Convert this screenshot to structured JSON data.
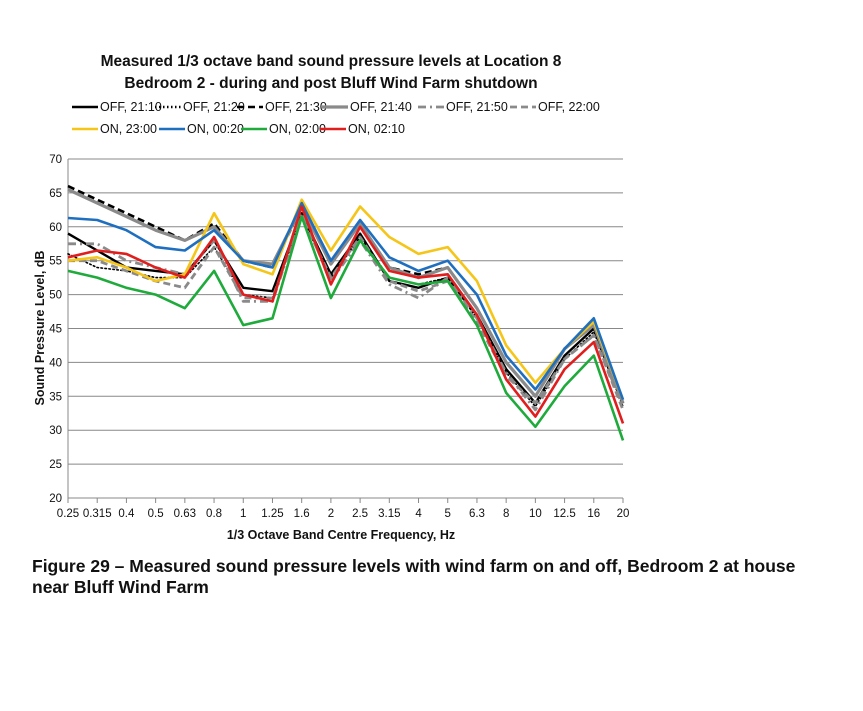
{
  "chart_data": {
    "type": "line",
    "title_line1": "Measured 1/3 octave band sound pressure levels at Location 8",
    "title_line2": "Bedroom 2 - during and post Bluff Wind Farm shutdown",
    "xlabel": "1/3 Octave Band Centre Frequency, Hz",
    "ylabel": "Sound Pressure Level, dB",
    "ylim": [
      20,
      70
    ],
    "yticks": [
      20,
      25,
      30,
      35,
      40,
      45,
      50,
      55,
      60,
      65,
      70
    ],
    "grid": "horizontal",
    "legend_position": "top",
    "categories": [
      "0.25",
      "0.315",
      "0.4",
      "0.5",
      "0.63",
      "0.8",
      "1",
      "1.25",
      "1.6",
      "2",
      "2.5",
      "3.15",
      "4",
      "5",
      "6.3",
      "8",
      "10",
      "12.5",
      "16",
      "20"
    ],
    "series": [
      {
        "name": "OFF, 21:10",
        "color": "#000000",
        "dash": "solid",
        "width": 2.4,
        "values": [
          59,
          56.5,
          54,
          53.5,
          53,
          58,
          51,
          50.5,
          62,
          53,
          59,
          52,
          51,
          52.5,
          47,
          39,
          34,
          41,
          45,
          34
        ]
      },
      {
        "name": "OFF, 21:20",
        "color": "#000000",
        "dash": "dotted",
        "width": 1.6,
        "values": [
          56,
          54,
          53.5,
          52.5,
          52.5,
          57,
          50,
          49.5,
          61.5,
          52.5,
          58.5,
          52.5,
          51.5,
          52.5,
          46.5,
          38.5,
          33.5,
          40.5,
          44.5,
          33.5
        ]
      },
      {
        "name": "OFF, 21:30",
        "color": "#000000",
        "dash": "dashed",
        "width": 2.6,
        "values": [
          66,
          64,
          62,
          60,
          58,
          60.5,
          55,
          54,
          63,
          55,
          60.5,
          54,
          53,
          54,
          48,
          40,
          35,
          42,
          45.5,
          34
        ]
      },
      {
        "name": "OFF, 21:40",
        "color": "#8a8a8a",
        "dash": "solid",
        "width": 3.2,
        "values": [
          65.5,
          63.5,
          61.5,
          59.5,
          58,
          60,
          55,
          54.5,
          63,
          54.5,
          60.5,
          54,
          52.5,
          54,
          48,
          40,
          35,
          42,
          45.5,
          34
        ]
      },
      {
        "name": "OFF, 21:50",
        "color": "#8a8a8a",
        "dash": "dashdot",
        "width": 2.8,
        "values": [
          57.5,
          57.5,
          55,
          54,
          53,
          58,
          49,
          49,
          62,
          52,
          58,
          51.5,
          49.5,
          52.5,
          46.5,
          38.5,
          33,
          40.5,
          44,
          33.5
        ]
      },
      {
        "name": "OFF, 22:00",
        "color": "#8a8a8a",
        "dash": "dashed",
        "width": 2.8,
        "values": [
          55,
          55,
          53.5,
          52,
          51,
          57,
          49.5,
          49.5,
          61.5,
          52.5,
          58.5,
          52,
          50.5,
          52,
          46,
          38,
          34,
          40.5,
          44,
          33
        ]
      },
      {
        "name": "ON, 23:00",
        "color": "#f5c518",
        "dash": "solid",
        "width": 2.6,
        "values": [
          55,
          55.5,
          54,
          52,
          53,
          62,
          54.5,
          53,
          64,
          56.5,
          63,
          58.5,
          56,
          57,
          52,
          42.5,
          37,
          42,
          46,
          34.5
        ]
      },
      {
        "name": "ON, 00:20",
        "color": "#1f6fc0",
        "dash": "solid",
        "width": 2.6,
        "values": [
          61.3,
          61,
          59.5,
          57,
          56.5,
          59.5,
          55,
          54,
          63.5,
          55,
          61,
          55.5,
          53.5,
          55,
          50,
          41,
          36,
          42,
          46.5,
          34.5
        ]
      },
      {
        "name": "ON, 02:00",
        "color": "#1faa3c",
        "dash": "solid",
        "width": 2.6,
        "values": [
          53.5,
          52.5,
          51,
          50,
          48,
          53.5,
          45.5,
          46.5,
          61.5,
          49.5,
          58,
          52.5,
          51.5,
          52,
          45.5,
          35.5,
          30.5,
          36.5,
          41,
          28.5
        ]
      },
      {
        "name": "ON, 02:10",
        "color": "#e01e1e",
        "dash": "solid",
        "width": 2.6,
        "values": [
          55.5,
          56.5,
          56,
          54,
          52.5,
          58.5,
          50,
          49,
          63,
          51.5,
          60,
          53.5,
          52.5,
          53,
          47,
          37.5,
          32,
          39,
          43,
          31
        ]
      }
    ]
  },
  "caption": {
    "text": "Figure 29 – Measured sound pressure levels with wind farm on and off, Bedroom 2 at house near Bluff Wind Farm"
  }
}
